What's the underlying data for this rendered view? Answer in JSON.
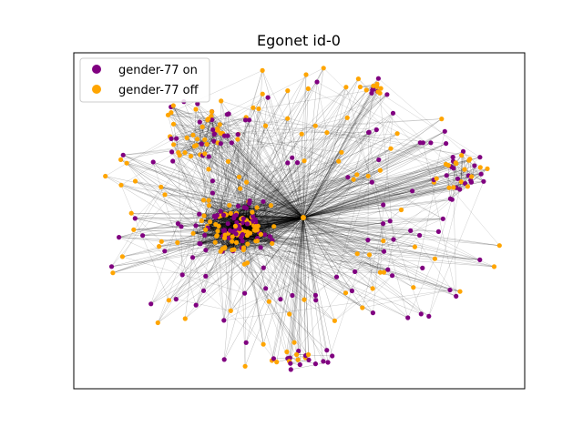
{
  "figure": {
    "title": "Egonet id-0"
  },
  "legend": {
    "placement": "upper-left",
    "entries": [
      {
        "label": "gender-77 on",
        "color": "#800080"
      },
      {
        "label": "gender-77 off",
        "color": "#FFA500"
      }
    ]
  },
  "graph": {
    "type": "network",
    "edge_color": "#000000",
    "axes_ticks": "none",
    "ego_node_color": "#FFA500"
  }
}
